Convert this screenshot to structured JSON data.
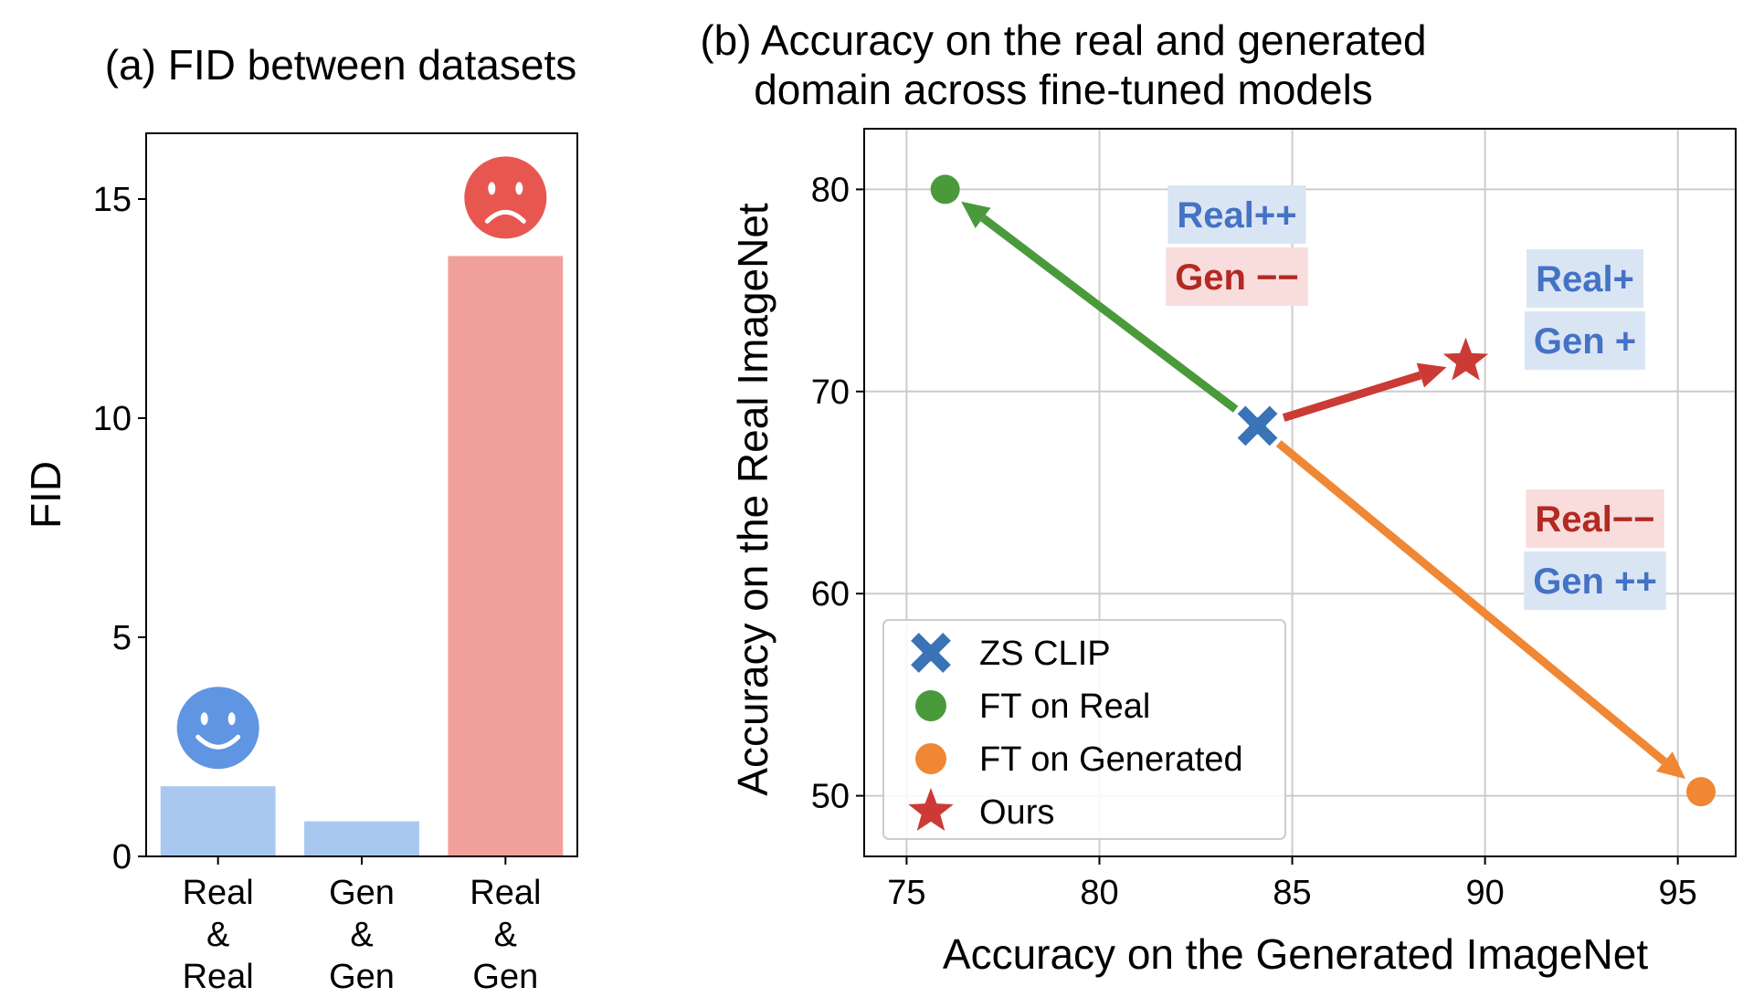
{
  "chart_data": [
    {
      "type": "bar",
      "title": "(a) FID between datasets",
      "ylabel": "FID",
      "ylim": [
        0,
        16.5
      ],
      "yticks": [
        0,
        5,
        10,
        15
      ],
      "categories": [
        "Real\n&\nReal",
        "Gen\n&\nGen",
        "Real\n&\nGen"
      ],
      "category_lines": [
        [
          "Real",
          "&",
          "Real"
        ],
        [
          "Gen",
          "&",
          "Gen"
        ],
        [
          "Real",
          "&",
          "Gen"
        ]
      ],
      "values": [
        1.6,
        0.8,
        13.7
      ],
      "bar_colors": [
        "#a9c8f0",
        "#a9c8f0",
        "#f2a09c"
      ],
      "annotations": [
        {
          "symbol": "happy-face",
          "bar_index": 0,
          "color": "#5f95e2"
        },
        {
          "symbol": "sad-face",
          "bar_index": 2,
          "color": "#e8574f"
        }
      ]
    },
    {
      "type": "scatter",
      "title_lines": [
        "(b) Accuracy on the real and generated",
        "domain across fine-tuned models"
      ],
      "xlabel": "Accuracy on the Generated ImageNet",
      "ylabel": "Accuracy on the Real ImageNet",
      "xlim": [
        73.9,
        96.5
      ],
      "ylim": [
        47,
        83
      ],
      "xticks": [
        75,
        80,
        85,
        90,
        95
      ],
      "yticks": [
        50,
        60,
        70,
        80
      ],
      "grid": true,
      "series": [
        {
          "name": "ZS CLIP",
          "marker": "x",
          "color": "#3a73b6",
          "x": 84.1,
          "y": 68.3
        },
        {
          "name": "FT on Real",
          "marker": "circle",
          "color": "#4a9a3c",
          "x": 76.0,
          "y": 80.0
        },
        {
          "name": "FT on Generated",
          "marker": "circle",
          "color": "#ef8734",
          "x": 95.6,
          "y": 50.2
        },
        {
          "name": "Ours",
          "marker": "star",
          "color": "#cc3a35",
          "x": 89.5,
          "y": 71.5
        }
      ],
      "arrows": [
        {
          "from": [
            84.1,
            68.3
          ],
          "to": [
            76.0,
            80.0
          ],
          "color": "#4a9a3c"
        },
        {
          "from": [
            84.1,
            68.3
          ],
          "to": [
            89.5,
            71.5
          ],
          "color": "#cc3a35"
        },
        {
          "from": [
            84.1,
            68.3
          ],
          "to": [
            95.6,
            50.2
          ],
          "color": "#ef8734"
        }
      ],
      "text_annotations": [
        {
          "lines": [
            {
              "text": "Real++",
              "color": "#4472c4",
              "bg": "#dae5f4"
            },
            {
              "text": "Gen −−",
              "color": "#b22a22",
              "bg": "#f9dcdc"
            }
          ]
        },
        {
          "lines": [
            {
              "text": "Real+",
              "color": "#4472c4",
              "bg": "#dae5f4"
            },
            {
              "text": "Gen +",
              "color": "#4472c4",
              "bg": "#dae5f4"
            }
          ]
        },
        {
          "lines": [
            {
              "text": "Real−−",
              "color": "#b22a22",
              "bg": "#f9dcdc"
            },
            {
              "text": "Gen ++",
              "color": "#4472c4",
              "bg": "#dae5f4"
            }
          ]
        }
      ],
      "legend": {
        "placement": "lower-left",
        "entries": [
          "ZS CLIP",
          "FT on Real",
          "FT on Generated",
          "Ours"
        ]
      }
    }
  ]
}
